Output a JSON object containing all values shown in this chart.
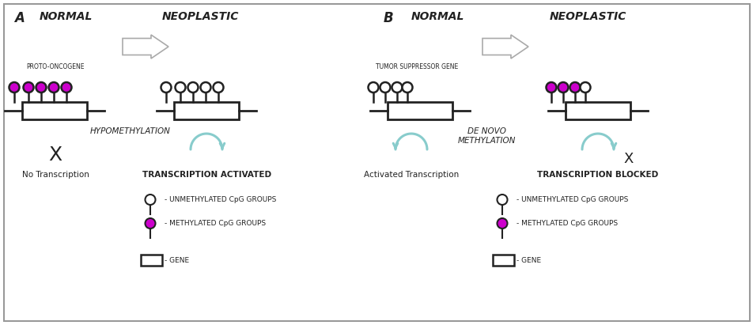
{
  "bg_color": "#ffffff",
  "border_color": "#999999",
  "magenta": "#cc00cc",
  "teal_arrow": "#88cccc",
  "dark": "#222222",
  "title_A": "A",
  "title_B": "B",
  "label_normal_A": "NORMAL",
  "label_neoplastic_A": "NEOPLASTIC",
  "label_normal_B": "NORMAL",
  "label_neoplastic_B": "NEOPLASTIC",
  "label_proto": "PROTO-ONCOGENE",
  "label_tumor": "TUMOR SUPPRESSOR GENE",
  "label_hypo": "HYPOMETHYLATION",
  "label_denovo": "DE NOVO\nMETHYLATION",
  "label_no_trans": "No Transcription",
  "label_trans_act": "TRANSCRIPTION ACTIVATED",
  "label_act_trans": "Activated Transcription",
  "label_trans_block": "TRANSCRIPTION BLOCKED",
  "legend_unmeth": "- UNMETHYLATED CpG GROUPS",
  "legend_meth": "- METHYLATED CpG GROUPS",
  "legend_gene": "- GENE"
}
